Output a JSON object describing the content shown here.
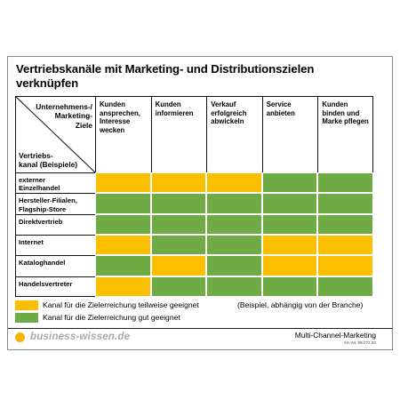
{
  "title": "Vertriebskanäle mit Marketing- und Distributionszielen verknüpfen",
  "corner": {
    "top": "Unternehmens-/\nMarketing-\nZiele",
    "bottom": "Vertriebs-\nkanal (Beispiele)"
  },
  "columns": [
    "Kunden\nansprechen,\nInteresse\nwecken",
    "Kunden\ninformieren",
    "Verkauf\nerfolgreich\nabwickeln",
    "Service\nanbieten",
    "Kunden\nbinden und\nMarke pflegen"
  ],
  "rows": [
    {
      "label": "externer\nEinzelhandel",
      "cells": [
        "teilweise",
        "teilweise",
        "teilweise",
        "gut",
        "gut"
      ]
    },
    {
      "label": "Hersteller-Filialen,\nFlagship-Store",
      "cells": [
        "gut",
        "gut",
        "gut",
        "gut",
        "gut"
      ]
    },
    {
      "label": "Direktvertrieb",
      "cells": [
        "gut",
        "gut",
        "gut",
        "gut",
        "gut"
      ]
    },
    {
      "label": "Internet",
      "cells": [
        "teilweise",
        "gut",
        "gut",
        "teilweise",
        "teilweise"
      ]
    },
    {
      "label": "Kataloghandel",
      "cells": [
        "gut",
        "teilweise",
        "gut",
        "teilweise",
        "teilweise"
      ]
    },
    {
      "label": "Handelsvertreter",
      "cells": [
        "teilweise",
        "gut",
        "gut",
        "gut",
        "gut"
      ]
    }
  ],
  "colors": {
    "teilweise": "#fcbf00",
    "gut": "#6fab45"
  },
  "legend": {
    "teilweise": "Kanal für die Zielerreichung teilweise geeignet",
    "gut": "Kanal für die Zielerreichung gut geeignet"
  },
  "note": "(Beispiel, abhängig von der Branche)",
  "footer": {
    "logo": "business-wissen.de",
    "title": "Multi-Channel-Marketing",
    "artnr": "Art.-Nr. 99.072.04"
  }
}
